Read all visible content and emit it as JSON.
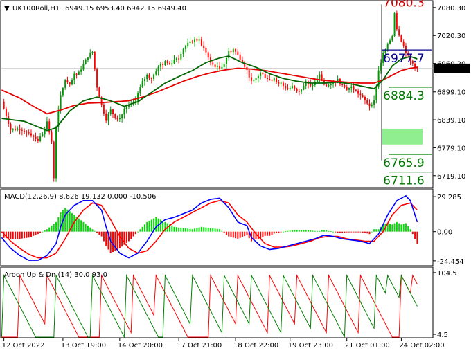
{
  "header": {
    "symbol": "UK100Roll,H1",
    "ohlc": "6949.15 6953.40 6942.15 6949.40",
    "arrow": "▼"
  },
  "colors": {
    "bull": "#009900",
    "bear": "#ff0000",
    "ma_fast": "#006400",
    "ma_slow": "#e60000",
    "macd_line": "#0000ff",
    "macd_signal": "#ff0000",
    "hist_pos": "#00dd00",
    "hist_neg": "#ff0000",
    "aroon_up": "#008000",
    "aroon_down": "#ff0000",
    "current_price_bg": "#000000"
  },
  "chart_data": [
    {
      "type": "candlestick",
      "name": "price",
      "yticks": [
        "7080.30",
        "7020.30",
        "6960.20",
        "6899.10",
        "6839.10",
        "6779.10",
        "6719.10"
      ],
      "ytick_values": [
        7080.3,
        7020.3,
        6960.2,
        6899.1,
        6839.1,
        6779.1,
        6719.1
      ],
      "ylim": [
        6695,
        7092
      ],
      "current_price": "6949.40",
      "current_price_value": 6949.4,
      "levels": [
        {
          "label": "7080.3",
          "value": 7082,
          "color": "#cc0000"
        },
        {
          "label": "6977.7",
          "value": 6962.5,
          "color": "#00008b"
        },
        {
          "label": "6884.3",
          "value": 6882.5,
          "color": "#007a00"
        },
        {
          "label": "6765.9",
          "value": 6738,
          "color": "#007a00"
        },
        {
          "label": "6711.6",
          "value": 6700,
          "color": "#007a00"
        }
      ],
      "target_zone": {
        "from": 6786,
        "to": 6820,
        "color": "#90ee90"
      },
      "range_box": {
        "top": 7087,
        "bottom": 6752,
        "from_index": 168,
        "to_index": 183
      },
      "n_bars": 183,
      "anchors": [
        [
          0,
          6878
        ],
        [
          4,
          6818
        ],
        [
          8,
          6820
        ],
        [
          12,
          6812
        ],
        [
          16,
          6795
        ],
        [
          18,
          6810
        ],
        [
          20,
          6835
        ],
        [
          22,
          6790
        ],
        [
          23,
          6715
        ],
        [
          24,
          6825
        ],
        [
          26,
          6890
        ],
        [
          28,
          6925
        ],
        [
          30,
          6912
        ],
        [
          32,
          6935
        ],
        [
          34,
          6940
        ],
        [
          36,
          6958
        ],
        [
          38,
          6975
        ],
        [
          40,
          6985
        ],
        [
          42,
          6910
        ],
        [
          44,
          6870
        ],
        [
          46,
          6840
        ],
        [
          48,
          6860
        ],
        [
          50,
          6845
        ],
        [
          52,
          6840
        ],
        [
          54,
          6862
        ],
        [
          56,
          6870
        ],
        [
          58,
          6870
        ],
        [
          60,
          6895
        ],
        [
          62,
          6920
        ],
        [
          64,
          6935
        ],
        [
          66,
          6928
        ],
        [
          68,
          6945
        ],
        [
          70,
          6958
        ],
        [
          72,
          6965
        ],
        [
          74,
          6958
        ],
        [
          76,
          6968
        ],
        [
          78,
          6975
        ],
        [
          80,
          6992
        ],
        [
          82,
          7002
        ],
        [
          84,
          7008
        ],
        [
          86,
          7012
        ],
        [
          88,
          7000
        ],
        [
          90,
          6985
        ],
        [
          92,
          6960
        ],
        [
          94,
          6955
        ],
        [
          96,
          6950
        ],
        [
          98,
          6960
        ],
        [
          100,
          6985
        ],
        [
          102,
          6992
        ],
        [
          104,
          6978
        ],
        [
          106,
          6965
        ],
        [
          108,
          6945
        ],
        [
          110,
          6920
        ],
        [
          112,
          6928
        ],
        [
          114,
          6940
        ],
        [
          116,
          6932
        ],
        [
          118,
          6925
        ],
        [
          120,
          6930
        ],
        [
          122,
          6915
        ],
        [
          124,
          6912
        ],
        [
          126,
          6905
        ],
        [
          128,
          6910
        ],
        [
          130,
          6900
        ],
        [
          132,
          6905
        ],
        [
          134,
          6920
        ],
        [
          136,
          6910
        ],
        [
          138,
          6920
        ],
        [
          140,
          6935
        ],
        [
          142,
          6915
        ],
        [
          144,
          6908
        ],
        [
          146,
          6920
        ],
        [
          148,
          6925
        ],
        [
          150,
          6912
        ],
        [
          152,
          6905
        ],
        [
          154,
          6910
        ],
        [
          156,
          6900
        ],
        [
          158,
          6892
        ],
        [
          160,
          6880
        ],
        [
          162,
          6870
        ],
        [
          164,
          6880
        ],
        [
          166,
          6945
        ],
        [
          168,
          6980
        ],
        [
          170,
          7000
        ],
        [
          172,
          7020
        ],
        [
          173,
          7070
        ],
        [
          174,
          7035
        ],
        [
          176,
          7010
        ],
        [
          178,
          6985
        ],
        [
          180,
          6965
        ],
        [
          183,
          6949
        ]
      ],
      "ma_fast_anchors": [
        [
          0,
          6842
        ],
        [
          10,
          6836
        ],
        [
          20,
          6816
        ],
        [
          24,
          6822
        ],
        [
          30,
          6858
        ],
        [
          36,
          6880
        ],
        [
          42,
          6888
        ],
        [
          48,
          6880
        ],
        [
          54,
          6868
        ],
        [
          60,
          6878
        ],
        [
          66,
          6898
        ],
        [
          72,
          6918
        ],
        [
          78,
          6932
        ],
        [
          84,
          6945
        ],
        [
          90,
          6962
        ],
        [
          96,
          6972
        ],
        [
          100,
          6976
        ],
        [
          106,
          6962
        ],
        [
          112,
          6952
        ],
        [
          118,
          6938
        ],
        [
          124,
          6928
        ],
        [
          130,
          6922
        ],
        [
          136,
          6918
        ],
        [
          142,
          6918
        ],
        [
          148,
          6920
        ],
        [
          154,
          6916
        ],
        [
          160,
          6910
        ],
        [
          164,
          6906
        ],
        [
          168,
          6925
        ],
        [
          172,
          6955
        ],
        [
          176,
          6970
        ],
        [
          180,
          6975
        ],
        [
          183,
          6970
        ]
      ],
      "ma_slow_anchors": [
        [
          0,
          6903
        ],
        [
          8,
          6886
        ],
        [
          14,
          6868
        ],
        [
          20,
          6852
        ],
        [
          26,
          6860
        ],
        [
          32,
          6870
        ],
        [
          38,
          6875
        ],
        [
          44,
          6876
        ],
        [
          50,
          6878
        ],
        [
          56,
          6880
        ],
        [
          62,
          6888
        ],
        [
          68,
          6898
        ],
        [
          74,
          6910
        ],
        [
          80,
          6922
        ],
        [
          86,
          6932
        ],
        [
          92,
          6940
        ],
        [
          98,
          6946
        ],
        [
          104,
          6950
        ],
        [
          110,
          6948
        ],
        [
          116,
          6945
        ],
        [
          122,
          6940
        ],
        [
          128,
          6935
        ],
        [
          134,
          6930
        ],
        [
          140,
          6925
        ],
        [
          146,
          6922
        ],
        [
          152,
          6920
        ],
        [
          158,
          6918
        ],
        [
          164,
          6918
        ],
        [
          168,
          6925
        ],
        [
          172,
          6935
        ],
        [
          176,
          6945
        ],
        [
          180,
          6950
        ],
        [
          183,
          6952
        ]
      ]
    },
    {
      "type": "macd",
      "label": "MACD(12,26,9) 8.626 19.132 0.000 -10.506",
      "yticks": [
        "29.285",
        "0.00",
        "-24.454"
      ],
      "ytick_values": [
        29.285,
        0,
        -24.454
      ],
      "ylim": [
        -28,
        34
      ],
      "macd_anchors": [
        [
          0,
          -5
        ],
        [
          4,
          -14
        ],
        [
          8,
          -20
        ],
        [
          12,
          -24
        ],
        [
          16,
          -24
        ],
        [
          20,
          -20
        ],
        [
          24,
          -10
        ],
        [
          26,
          4
        ],
        [
          28,
          14
        ],
        [
          32,
          22
        ],
        [
          36,
          26
        ],
        [
          40,
          26
        ],
        [
          44,
          18
        ],
        [
          46,
          4
        ],
        [
          48,
          -8
        ],
        [
          52,
          -18
        ],
        [
          56,
          -22
        ],
        [
          60,
          -18
        ],
        [
          64,
          -8
        ],
        [
          68,
          4
        ],
        [
          72,
          10
        ],
        [
          76,
          12
        ],
        [
          80,
          15
        ],
        [
          84,
          18
        ],
        [
          88,
          24
        ],
        [
          92,
          27
        ],
        [
          96,
          28
        ],
        [
          100,
          20
        ],
        [
          104,
          8
        ],
        [
          108,
          5
        ],
        [
          110,
          -5
        ],
        [
          114,
          -12
        ],
        [
          118,
          -15
        ],
        [
          122,
          -14
        ],
        [
          126,
          -12
        ],
        [
          130,
          -10
        ],
        [
          134,
          -8
        ],
        [
          138,
          -6
        ],
        [
          142,
          -3
        ],
        [
          146,
          -4
        ],
        [
          150,
          -6
        ],
        [
          154,
          -7
        ],
        [
          158,
          -8
        ],
        [
          162,
          -10
        ],
        [
          166,
          -2
        ],
        [
          170,
          14
        ],
        [
          174,
          26
        ],
        [
          178,
          30
        ],
        [
          180,
          26
        ],
        [
          183,
          8
        ]
      ],
      "signal_anchors": [
        [
          0,
          0
        ],
        [
          4,
          -8
        ],
        [
          8,
          -14
        ],
        [
          12,
          -19
        ],
        [
          16,
          -22
        ],
        [
          20,
          -22
        ],
        [
          24,
          -18
        ],
        [
          28,
          -6
        ],
        [
          32,
          8
        ],
        [
          36,
          18
        ],
        [
          40,
          24
        ],
        [
          44,
          22
        ],
        [
          48,
          10
        ],
        [
          52,
          -4
        ],
        [
          56,
          -14
        ],
        [
          60,
          -18
        ],
        [
          64,
          -16
        ],
        [
          68,
          -8
        ],
        [
          72,
          2
        ],
        [
          76,
          8
        ],
        [
          80,
          12
        ],
        [
          84,
          16
        ],
        [
          88,
          20
        ],
        [
          92,
          24
        ],
        [
          96,
          26
        ],
        [
          100,
          24
        ],
        [
          104,
          14
        ],
        [
          108,
          8
        ],
        [
          112,
          -2
        ],
        [
          116,
          -10
        ],
        [
          120,
          -13
        ],
        [
          124,
          -13
        ],
        [
          128,
          -12
        ],
        [
          132,
          -10
        ],
        [
          136,
          -8
        ],
        [
          140,
          -5
        ],
        [
          144,
          -4
        ],
        [
          148,
          -4
        ],
        [
          152,
          -6
        ],
        [
          156,
          -7
        ],
        [
          160,
          -8
        ],
        [
          164,
          -8
        ],
        [
          168,
          0
        ],
        [
          172,
          14
        ],
        [
          176,
          22
        ],
        [
          180,
          24
        ],
        [
          183,
          18
        ]
      ]
    },
    {
      "type": "aroon",
      "label": "Aroon Up & Dn (14) 30.0 93.0",
      "yticks": [
        "104.5",
        "4.5"
      ],
      "ytick_values": [
        104.5,
        4.5
      ],
      "ylim": [
        0,
        110
      ],
      "period": 14,
      "up_resets": [
        1,
        24,
        40,
        55,
        72,
        84,
        98,
        110,
        124,
        137,
        152,
        165,
        170,
        176
      ],
      "down_resets": [
        8,
        20,
        44,
        58,
        68,
        92,
        104,
        118,
        130,
        144,
        158,
        176,
        181
      ]
    }
  ],
  "x_axis": {
    "labels": [
      {
        "text": "12 Oct 2022",
        "index": 1
      },
      {
        "text": "13 Oct 19:00",
        "index": 27
      },
      {
        "text": "14 Oct 20:00",
        "index": 52
      },
      {
        "text": "17 Oct 21:00",
        "index": 78
      },
      {
        "text": "18 Oct 22:00",
        "index": 103
      },
      {
        "text": "19 Oct 23:00",
        "index": 127
      },
      {
        "text": "21 Oct 01:00",
        "index": 152
      },
      {
        "text": "24 Oct 02:00",
        "index": 176
      }
    ]
  }
}
